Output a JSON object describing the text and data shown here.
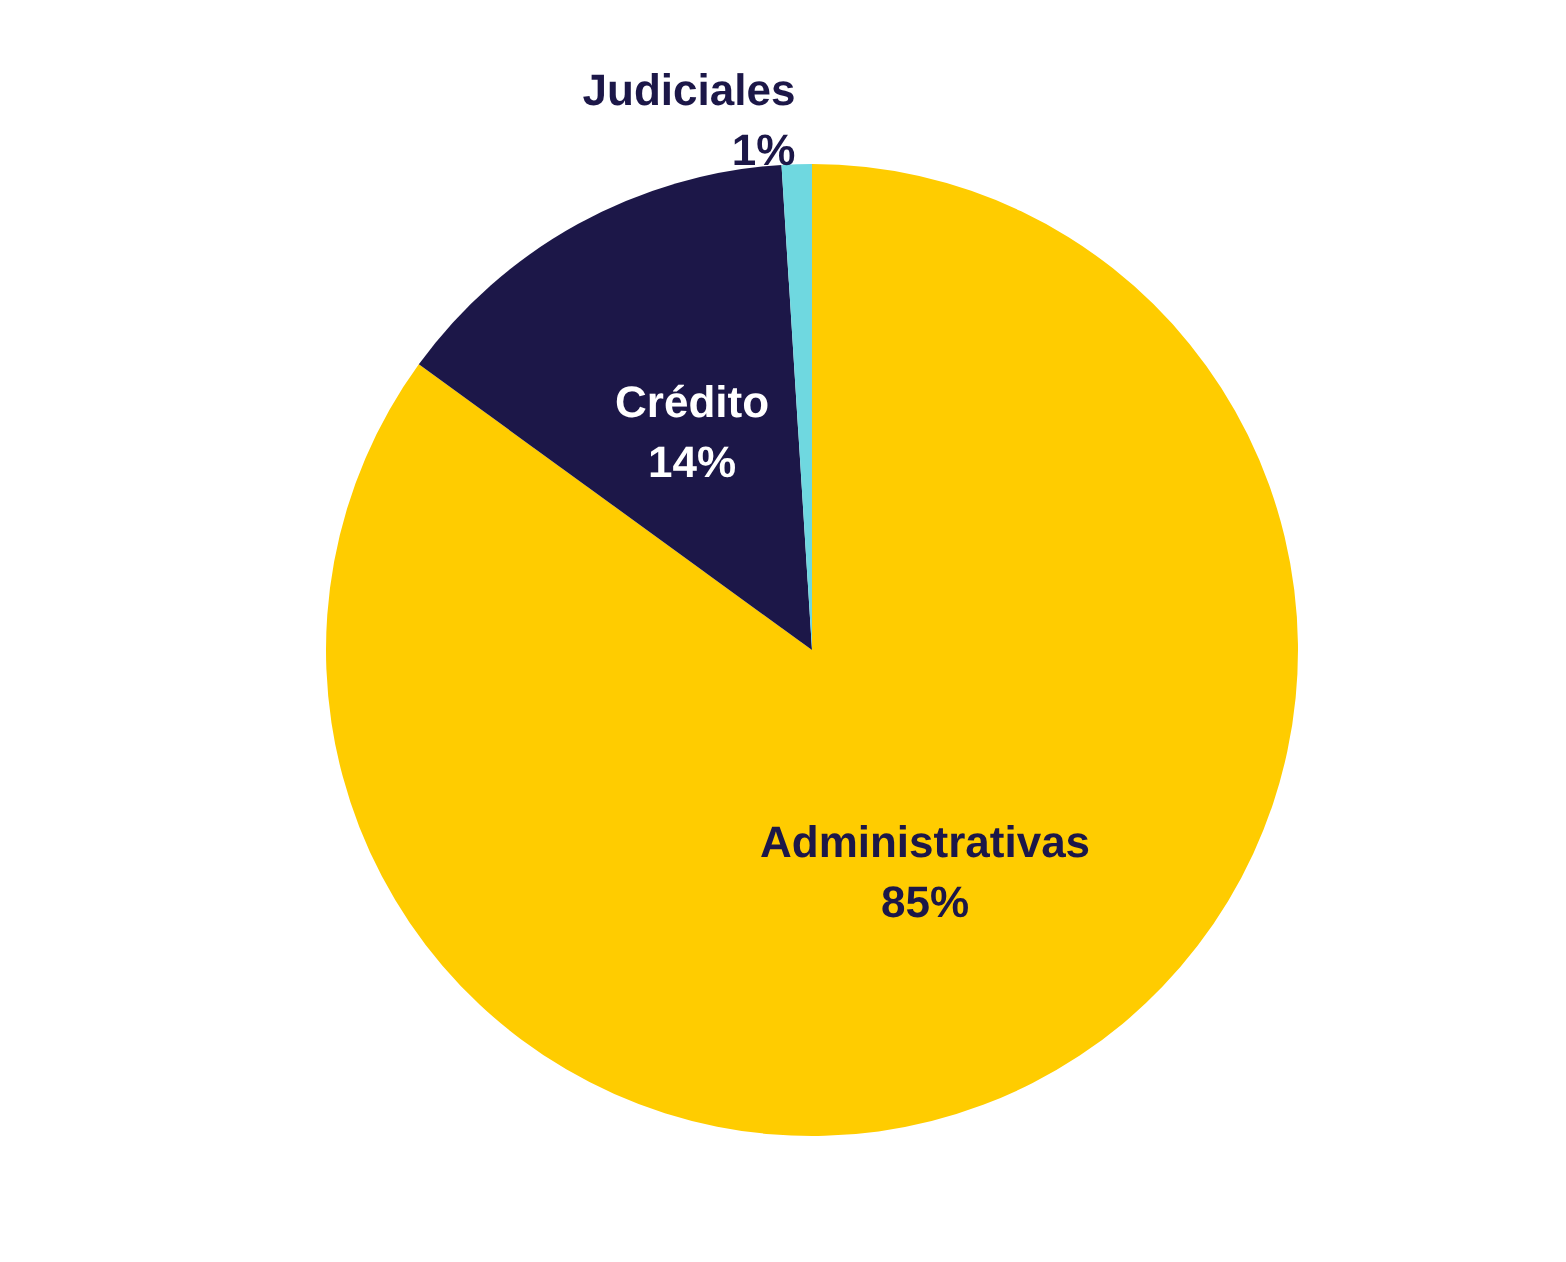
{
  "chart_data": {
    "type": "pie",
    "categories": [
      "Administrativas",
      "Crédito",
      "Judiciales"
    ],
    "values": [
      85,
      14,
      1
    ],
    "colors": [
      "#ffcc00",
      "#1c1748",
      "#6fd8e0"
    ],
    "value_labels": [
      "85%",
      "14%",
      "1%"
    ],
    "legend": false
  }
}
